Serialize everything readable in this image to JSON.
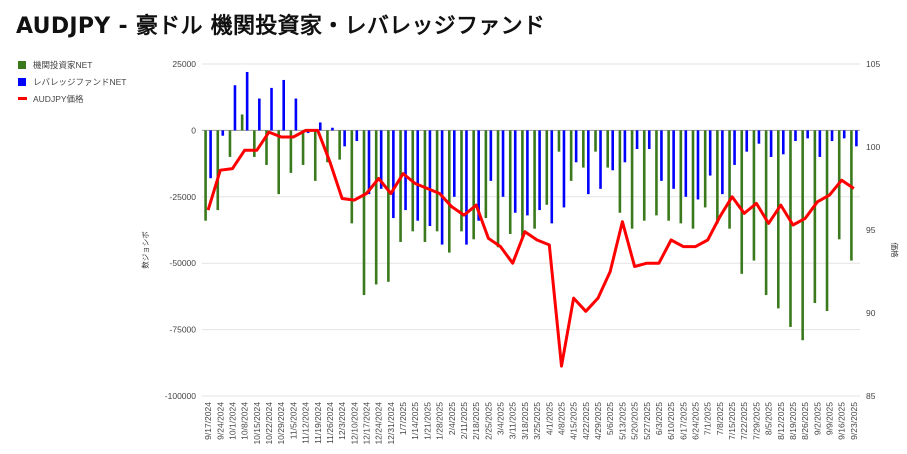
{
  "title": "AUDJPY - 豪ドル 機関投資家・レバレッジファンド",
  "legend": [
    {
      "label": "機関投資家NET",
      "color": "#3a7a1c",
      "kind": "bar"
    },
    {
      "label": "レバレッジファンドNET",
      "color": "#0000ff",
      "kind": "bar"
    },
    {
      "label": "AUDJPY価格",
      "color": "#ff0000",
      "kind": "line"
    }
  ],
  "chart_data": {
    "type": "bar+line",
    "title": "AUDJPY - 豪ドル 機関投資家・レバレッジファンド",
    "xlabel": "",
    "ylabel": "数ジョシボ",
    "y2label": "価格",
    "ylim": [
      -100000,
      25000
    ],
    "y2lim": [
      85,
      105
    ],
    "yticks": [
      25000,
      0,
      -25000,
      -50000,
      -75000,
      -100000
    ],
    "y2ticks": [
      105,
      100,
      95,
      90,
      85
    ],
    "grid": true,
    "legend_position": "left",
    "categories": [
      "9/17/2024",
      "9/24/2024",
      "10/1/2024",
      "10/8/2024",
      "10/15/2024",
      "10/22/2024",
      "10/29/2024",
      "11/5/2024",
      "11/12/2024",
      "11/19/2024",
      "11/26/2024",
      "12/3/2024",
      "12/10/2024",
      "12/17/2024",
      "12/24/2024",
      "12/31/2024",
      "1/7/2025",
      "1/14/2025",
      "1/21/2025",
      "1/28/2025",
      "2/4/2025",
      "2/11/2025",
      "2/18/2025",
      "2/25/2025",
      "3/4/2025",
      "3/11/2025",
      "3/18/2025",
      "3/25/2025",
      "4/1/2025",
      "4/8/2025",
      "4/15/2025",
      "4/22/2025",
      "4/29/2025",
      "5/6/2025",
      "5/13/2025",
      "5/20/2025",
      "5/27/2025",
      "6/3/2025",
      "6/10/2025",
      "6/17/2025",
      "6/24/2025",
      "7/1/2025",
      "7/8/2025",
      "7/15/2025",
      "7/22/2025",
      "7/29/2025",
      "8/5/2025",
      "8/12/2025",
      "8/19/2025",
      "8/26/2025",
      "9/2/2025",
      "9/9/2025",
      "9/16/2025",
      "9/23/2025"
    ],
    "series": [
      {
        "name": "機関投資家NET",
        "type": "bar",
        "axis": "left",
        "color": "#3a7a1c",
        "values": [
          -34000,
          -30000,
          -10000,
          6000,
          -10000,
          -13000,
          -24000,
          -16000,
          -13000,
          -19000,
          -12000,
          -11000,
          -35000,
          -62000,
          -58000,
          -57000,
          -42000,
          -38000,
          -42000,
          -38000,
          -46000,
          -38000,
          -41000,
          -33000,
          -44000,
          -39000,
          -40000,
          -37000,
          -28000,
          -8000,
          -19000,
          -14000,
          -8000,
          -14000,
          -31000,
          -37000,
          -34000,
          -32000,
          -34000,
          -35000,
          -37000,
          -29000,
          -35000,
          -37000,
          -54000,
          -49000,
          -62000,
          -67000,
          -74000,
          -79000,
          -65000,
          -68000,
          -41000,
          -49000
        ]
      },
      {
        "name": "レバレッジファンドNET",
        "type": "bar",
        "axis": "left",
        "color": "#0000ff",
        "values": [
          -18000,
          -2000,
          17000,
          22000,
          12000,
          16000,
          19000,
          12000,
          -1000,
          3000,
          1000,
          -6000,
          -4000,
          -24000,
          -22000,
          -33000,
          -30000,
          -34000,
          -36000,
          -43000,
          -25000,
          -43000,
          -34000,
          -19000,
          -25000,
          -31000,
          -32000,
          -30000,
          -35000,
          -29000,
          -12000,
          -24000,
          -22000,
          -15000,
          -12000,
          -7000,
          -7000,
          -19000,
          -22000,
          -25000,
          -26000,
          -17000,
          -24000,
          -13000,
          -8000,
          -5000,
          -10000,
          -9000,
          -4000,
          -3000,
          -10000,
          -4000,
          -3000,
          -6000
        ]
      },
      {
        "name": "AUDJPY価格",
        "type": "line",
        "axis": "right",
        "color": "#ff0000",
        "values": [
          96.2,
          98.6,
          98.7,
          99.8,
          99.8,
          100.9,
          100.6,
          100.6,
          101.0,
          101.0,
          99.1,
          96.9,
          96.8,
          97.2,
          98.1,
          97.2,
          98.4,
          97.8,
          97.5,
          97.2,
          96.4,
          95.9,
          96.5,
          94.5,
          94.0,
          93.0,
          94.9,
          94.4,
          94.1,
          86.8,
          90.9,
          90.1,
          90.9,
          92.5,
          95.5,
          92.8,
          93.0,
          93.0,
          94.4,
          94.0,
          94.0,
          94.4,
          95.8,
          97.0,
          96.0,
          96.6,
          95.4,
          96.5,
          95.3,
          95.7,
          96.7,
          97.1,
          98.0,
          97.5
        ]
      }
    ]
  }
}
